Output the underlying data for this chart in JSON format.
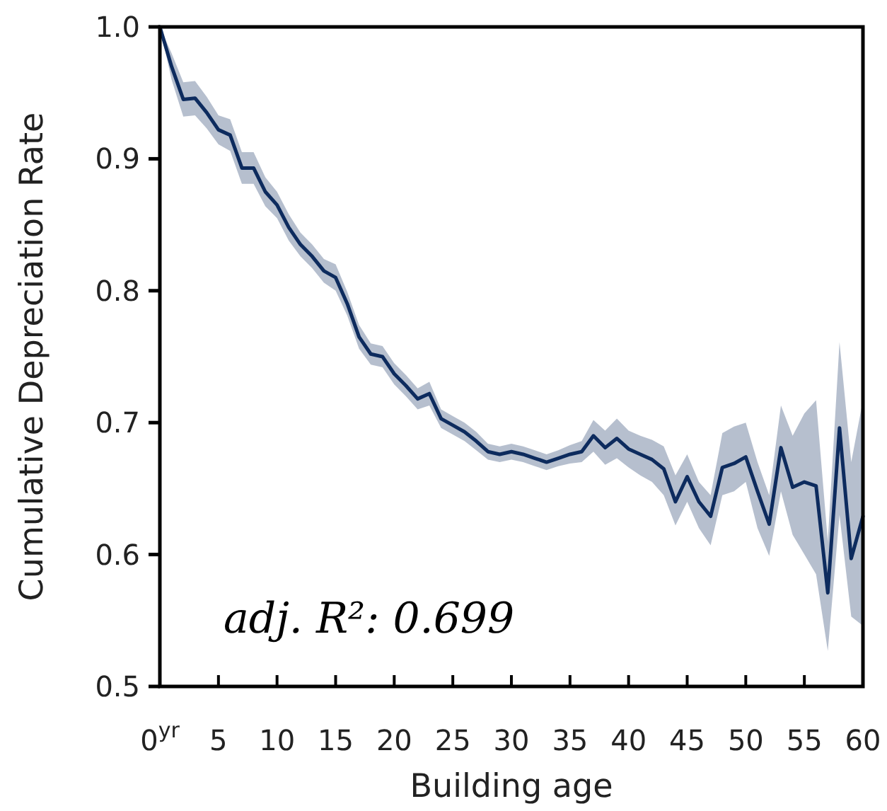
{
  "chart_data": {
    "type": "line",
    "xlabel": "Building age",
    "ylabel": "Cumulative Depreciation Rate",
    "xlim": [
      0,
      60
    ],
    "ylim": [
      0.5,
      1.0
    ],
    "xticks": [
      {
        "value": 0,
        "label": "0$^{yr}$"
      },
      5,
      10,
      15,
      20,
      25,
      30,
      35,
      40,
      45,
      50,
      55,
      60
    ],
    "yticks": [
      0.5,
      0.6,
      0.7,
      0.8,
      0.9,
      {
        "value": 1.0,
        "label": "1.0"
      }
    ],
    "x": [
      0,
      1,
      2,
      3,
      4,
      5,
      6,
      7,
      8,
      9,
      10,
      11,
      12,
      13,
      14,
      15,
      16,
      17,
      18,
      19,
      20,
      21,
      22,
      23,
      24,
      25,
      26,
      27,
      28,
      29,
      30,
      31,
      32,
      33,
      34,
      35,
      36,
      37,
      38,
      39,
      40,
      41,
      42,
      43,
      44,
      45,
      46,
      47,
      48,
      49,
      50,
      51,
      52,
      53,
      54,
      55,
      56,
      57,
      58,
      59,
      60
    ],
    "series": [
      {
        "color": "#0d2b5e",
        "values": [
          1.0,
          0.97,
          0.945,
          0.946,
          0.935,
          0.922,
          0.918,
          0.893,
          0.893,
          0.875,
          0.865,
          0.848,
          0.835,
          0.826,
          0.815,
          0.81,
          0.79,
          0.765,
          0.752,
          0.75,
          0.737,
          0.728,
          0.718,
          0.722,
          0.703,
          0.698,
          0.693,
          0.686,
          0.678,
          0.676,
          0.678,
          0.676,
          0.673,
          0.67,
          0.673,
          0.676,
          0.678,
          0.69,
          0.681,
          0.688,
          0.68,
          0.676,
          0.672,
          0.665,
          0.64,
          0.659,
          0.64,
          0.629,
          0.666,
          0.669,
          0.674,
          0.648,
          0.623,
          0.681,
          0.651,
          0.655,
          0.652,
          0.571,
          0.696,
          0.597,
          0.629
        ],
        "lower": [
          1.0,
          0.96,
          0.932,
          0.933,
          0.923,
          0.911,
          0.906,
          0.881,
          0.881,
          0.864,
          0.855,
          0.838,
          0.826,
          0.817,
          0.806,
          0.8,
          0.781,
          0.756,
          0.744,
          0.742,
          0.729,
          0.72,
          0.71,
          0.713,
          0.696,
          0.691,
          0.686,
          0.679,
          0.672,
          0.67,
          0.672,
          0.67,
          0.667,
          0.664,
          0.667,
          0.669,
          0.67,
          0.678,
          0.668,
          0.673,
          0.666,
          0.66,
          0.655,
          0.645,
          0.622,
          0.64,
          0.62,
          0.607,
          0.645,
          0.648,
          0.655,
          0.62,
          0.599,
          0.648,
          0.615,
          0.6,
          0.585,
          0.527,
          0.63,
          0.553,
          0.546
        ],
        "upper": [
          1.0,
          0.98,
          0.958,
          0.959,
          0.947,
          0.933,
          0.93,
          0.905,
          0.905,
          0.886,
          0.875,
          0.858,
          0.844,
          0.835,
          0.824,
          0.82,
          0.799,
          0.774,
          0.76,
          0.758,
          0.745,
          0.736,
          0.726,
          0.731,
          0.71,
          0.705,
          0.7,
          0.693,
          0.684,
          0.682,
          0.684,
          0.682,
          0.679,
          0.676,
          0.679,
          0.683,
          0.686,
          0.702,
          0.694,
          0.703,
          0.694,
          0.69,
          0.687,
          0.682,
          0.66,
          0.676,
          0.655,
          0.645,
          0.692,
          0.697,
          0.7,
          0.67,
          0.645,
          0.713,
          0.69,
          0.707,
          0.717,
          0.61,
          0.761,
          0.67,
          0.717
        ]
      }
    ],
    "annotations": [
      "adj. R²: 0.699"
    ]
  }
}
